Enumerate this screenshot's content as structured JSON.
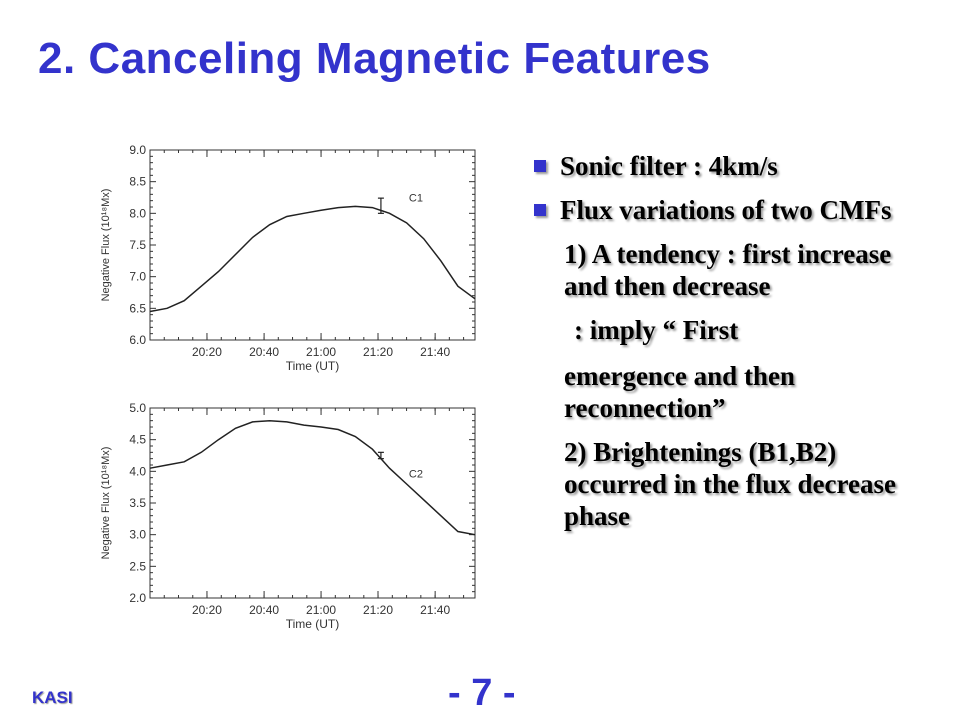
{
  "slide": {
    "title": "2. Canceling Magnetic Features",
    "footer_left": "KASI",
    "page_number": "- 7 -"
  },
  "bullets": [
    {
      "text": "Sonic filter : 4km/s"
    },
    {
      "text": "Flux variations of two CMFs"
    }
  ],
  "paragraphs": [
    {
      "text": "1) A tendency : first increase and then decrease"
    },
    {
      "text": ": imply “ First"
    },
    {
      "text": "emergence and then reconnection”"
    },
    {
      "text": "2) Brightenings (B1,B2) occurred in the flux decrease phase"
    }
  ],
  "chart_data": [
    {
      "type": "line",
      "label": "C1",
      "xlabel": "Time (UT)",
      "ylabel": "Negative Flux (10¹⁸Mx)",
      "xlim": [
        20.0,
        21.9
      ],
      "ylim": [
        6.0,
        9.0
      ],
      "xticks": [
        {
          "v": 20.333,
          "label": "20:20"
        },
        {
          "v": 20.667,
          "label": "20:40"
        },
        {
          "v": 21.0,
          "label": "21:00"
        },
        {
          "v": 21.333,
          "label": "21:20"
        },
        {
          "v": 21.667,
          "label": "21:40"
        }
      ],
      "yticks": [
        6.0,
        6.5,
        7.0,
        7.5,
        8.0,
        8.5,
        9.0
      ],
      "ytick_labels": [
        "6.0",
        "6.5",
        "7.0",
        "7.5",
        "8.0",
        "8.5",
        "9.0"
      ],
      "series": [
        {
          "x": [
            20.0,
            20.1,
            20.2,
            20.3,
            20.4,
            20.5,
            20.6,
            20.7,
            20.8,
            20.9,
            21.0,
            21.1,
            21.2,
            21.3,
            21.4,
            21.5,
            21.6,
            21.7,
            21.8,
            21.9
          ],
          "values": [
            6.45,
            6.5,
            6.62,
            6.85,
            7.08,
            7.35,
            7.62,
            7.82,
            7.95,
            8.0,
            8.05,
            8.09,
            8.11,
            8.09,
            8.0,
            7.85,
            7.6,
            7.25,
            6.85,
            6.65
          ]
        }
      ],
      "errorbar": {
        "x": 21.35,
        "y": 8.12,
        "err": 0.12
      }
    },
    {
      "type": "line",
      "label": "C2",
      "xlabel": "Time (UT)",
      "ylabel": "Negative Flux (10¹⁸Mx)",
      "xlim": [
        20.0,
        21.9
      ],
      "ylim": [
        2.0,
        5.0
      ],
      "xticks": [
        {
          "v": 20.333,
          "label": "20:20"
        },
        {
          "v": 20.667,
          "label": "20:40"
        },
        {
          "v": 21.0,
          "label": "21:00"
        },
        {
          "v": 21.333,
          "label": "21:20"
        },
        {
          "v": 21.667,
          "label": "21:40"
        }
      ],
      "yticks": [
        2.0,
        2.5,
        3.0,
        3.5,
        4.0,
        4.5,
        5.0
      ],
      "ytick_labels": [
        "2.0",
        "2.5",
        "3.0",
        "3.5",
        "4.0",
        "4.5",
        "5.0"
      ],
      "series": [
        {
          "x": [
            20.0,
            20.1,
            20.2,
            20.3,
            20.4,
            20.5,
            20.6,
            20.7,
            20.8,
            20.9,
            21.0,
            21.1,
            21.2,
            21.3,
            21.4,
            21.5,
            21.6,
            21.7,
            21.8,
            21.9
          ],
          "values": [
            4.05,
            4.1,
            4.15,
            4.3,
            4.5,
            4.68,
            4.78,
            4.8,
            4.78,
            4.73,
            4.7,
            4.66,
            4.55,
            4.35,
            4.05,
            3.8,
            3.55,
            3.3,
            3.05,
            3.0
          ]
        }
      ],
      "errorbar": {
        "x": 21.35,
        "y": 4.25,
        "err": 0.05
      }
    }
  ]
}
